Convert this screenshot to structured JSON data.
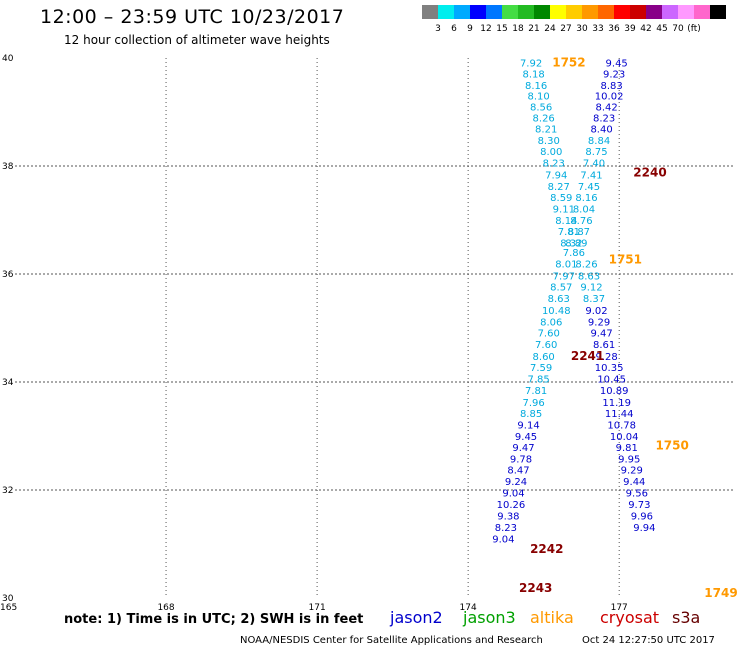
{
  "header": {
    "title": "12:00 – 23:59 UTC 10/23/2017",
    "subtitle": "12 hour collection of altimeter wave heights"
  },
  "footer": {
    "note": "note: 1) Time is in UTC; 2) SWH is in feet",
    "credit": "NOAA/NESDIS Center for Satellite Applications and Research",
    "timestamp": "Oct 24 12:27:50 UTC 2017"
  },
  "satellites": {
    "jason2": "jason2",
    "jason3": "jason3",
    "altika": "altika",
    "cryosat": "cryosat",
    "s3a": "s3a"
  },
  "colors": {
    "jason2": "#0000cc",
    "jason3": "#00a000",
    "altika": "#ff9900",
    "cryosat": "#cc0000",
    "s3a": "#660000",
    "cyan_track": "#00aadd"
  },
  "chart_data": {
    "type": "scatter",
    "x_range": [
      165,
      179.3
    ],
    "y_range": [
      30,
      40
    ],
    "x_ticks": [
      "165",
      "168",
      "171",
      "174",
      "177"
    ],
    "y_ticks": [
      "30",
      "32",
      "34",
      "36",
      "38",
      "40"
    ],
    "color_scale": {
      "colors": [
        "#808080",
        "#00eeee",
        "#00aaff",
        "#0000ff",
        "#0077ff",
        "#44dd44",
        "#22bb22",
        "#008800",
        "#ffff00",
        "#ffcc00",
        "#ff9900",
        "#ff6600",
        "#ff0000",
        "#cc0000",
        "#880088",
        "#cc66ff",
        "#ff99ff",
        "#ff66cc",
        "#000000"
      ],
      "labels": [
        "3",
        "6",
        "9",
        "12",
        "15",
        "18",
        "21",
        "24",
        "27",
        "30",
        "33",
        "36",
        "39",
        "42",
        "45",
        "70",
        "(ft)"
      ]
    },
    "time_labels": [
      {
        "text": "1752",
        "lon": 175.67,
        "lat": 39.84,
        "color": "#ff9900"
      },
      {
        "text": "2240",
        "lon": 177.28,
        "lat": 37.81,
        "color": "#880000"
      },
      {
        "text": "1751",
        "lon": 176.79,
        "lat": 36.19,
        "color": "#ff9900"
      },
      {
        "text": "2241",
        "lon": 176.04,
        "lat": 34.41,
        "color": "#880000"
      },
      {
        "text": "1750",
        "lon": 177.72,
        "lat": 32.75,
        "color": "#ff9900"
      },
      {
        "text": "2242",
        "lon": 175.23,
        "lat": 30.83,
        "color": "#880000"
      },
      {
        "text": "2243",
        "lon": 175.01,
        "lat": 30.11,
        "color": "#880000"
      },
      {
        "text": "1749",
        "lon": 178.69,
        "lat": 30.02,
        "color": "#ff9900"
      }
    ],
    "series": [
      {
        "color": "#00aadd",
        "points": [
          {
            "lon": 175.25,
            "lat": 39.84,
            "v": "7.92"
          },
          {
            "lon": 175.3,
            "lat": 39.64,
            "v": "8.18"
          },
          {
            "lon": 175.35,
            "lat": 39.43,
            "v": "8.16"
          },
          {
            "lon": 175.4,
            "lat": 39.23,
            "v": "8.10"
          },
          {
            "lon": 175.45,
            "lat": 39.03,
            "v": "8.56"
          },
          {
            "lon": 175.5,
            "lat": 38.82,
            "v": "8.26"
          },
          {
            "lon": 175.55,
            "lat": 38.62,
            "v": "8.21"
          },
          {
            "lon": 175.6,
            "lat": 38.41,
            "v": "8.30"
          },
          {
            "lon": 175.65,
            "lat": 38.2,
            "v": "8.00"
          },
          {
            "lon": 175.7,
            "lat": 37.99,
            "v": "8.23"
          },
          {
            "lon": 175.75,
            "lat": 37.77,
            "v": "7.94"
          },
          {
            "lon": 175.8,
            "lat": 37.56,
            "v": "8.27"
          },
          {
            "lon": 175.85,
            "lat": 37.35,
            "v": "8.59"
          },
          {
            "lon": 175.9,
            "lat": 37.14,
            "v": "9.11"
          },
          {
            "lon": 175.95,
            "lat": 36.93,
            "v": "8.14"
          },
          {
            "lon": 176.0,
            "lat": 36.72,
            "v": "7.81"
          },
          {
            "lon": 176.05,
            "lat": 36.51,
            "v": "8.32"
          },
          {
            "lon": 176.1,
            "lat": 36.33,
            "v": "7.86"
          },
          {
            "lon": 175.95,
            "lat": 36.12,
            "v": "8.01"
          },
          {
            "lon": 175.9,
            "lat": 35.9,
            "v": "7.97"
          },
          {
            "lon": 175.85,
            "lat": 35.69,
            "v": "8.57"
          },
          {
            "lon": 175.8,
            "lat": 35.48,
            "v": "8.63"
          },
          {
            "lon": 175.75,
            "lat": 35.26,
            "v": "10.48"
          },
          {
            "lon": 175.65,
            "lat": 35.05,
            "v": "8.06"
          },
          {
            "lon": 175.6,
            "lat": 34.84,
            "v": "7.60"
          },
          {
            "lon": 175.55,
            "lat": 34.63,
            "v": "7.60"
          },
          {
            "lon": 175.5,
            "lat": 34.41,
            "v": "8.60"
          },
          {
            "lon": 175.45,
            "lat": 34.2,
            "v": "7.59"
          },
          {
            "lon": 175.4,
            "lat": 33.99,
            "v": "7.85"
          },
          {
            "lon": 175.35,
            "lat": 33.78,
            "v": "7.81"
          },
          {
            "lon": 175.3,
            "lat": 33.56,
            "v": "7.96"
          },
          {
            "lon": 175.25,
            "lat": 33.35,
            "v": "8.85"
          }
        ]
      },
      {
        "color": "#0000cc",
        "points": [
          {
            "lon": 175.2,
            "lat": 33.14,
            "v": "9.14"
          },
          {
            "lon": 175.15,
            "lat": 32.93,
            "v": "9.45"
          },
          {
            "lon": 175.1,
            "lat": 32.72,
            "v": "9.47"
          },
          {
            "lon": 175.05,
            "lat": 32.51,
            "v": "9.78"
          },
          {
            "lon": 175.0,
            "lat": 32.31,
            "v": "8.47"
          },
          {
            "lon": 174.95,
            "lat": 32.09,
            "v": "9.24"
          },
          {
            "lon": 174.9,
            "lat": 31.88,
            "v": "9.04"
          },
          {
            "lon": 174.85,
            "lat": 31.67,
            "v": "10.26"
          },
          {
            "lon": 174.8,
            "lat": 31.45,
            "v": "9.38"
          },
          {
            "lon": 174.75,
            "lat": 31.24,
            "v": "8.23"
          },
          {
            "lon": 174.7,
            "lat": 31.03,
            "v": "9.04"
          }
        ]
      },
      {
        "color": "#0000cc",
        "points": [
          {
            "lon": 176.95,
            "lat": 39.84,
            "v": "9.45"
          },
          {
            "lon": 176.9,
            "lat": 39.64,
            "v": "9.23"
          },
          {
            "lon": 176.85,
            "lat": 39.43,
            "v": "8.83"
          },
          {
            "lon": 176.8,
            "lat": 39.23,
            "v": "10.02"
          },
          {
            "lon": 176.75,
            "lat": 39.03,
            "v": "8.42"
          },
          {
            "lon": 176.7,
            "lat": 38.82,
            "v": "8.23"
          },
          {
            "lon": 176.65,
            "lat": 38.62,
            "v": "8.40"
          }
        ]
      },
      {
        "color": "#00aadd",
        "points": [
          {
            "lon": 176.6,
            "lat": 38.41,
            "v": "8.84"
          },
          {
            "lon": 176.55,
            "lat": 38.2,
            "v": "8.75"
          },
          {
            "lon": 176.5,
            "lat": 37.99,
            "v": "7.40"
          },
          {
            "lon": 176.45,
            "lat": 37.77,
            "v": "7.41"
          },
          {
            "lon": 176.4,
            "lat": 37.56,
            "v": "7.45"
          },
          {
            "lon": 176.35,
            "lat": 37.35,
            "v": "8.16"
          },
          {
            "lon": 176.3,
            "lat": 37.14,
            "v": "8.04"
          },
          {
            "lon": 176.25,
            "lat": 36.93,
            "v": "8.76"
          },
          {
            "lon": 176.2,
            "lat": 36.72,
            "v": "8.87"
          },
          {
            "lon": 176.15,
            "lat": 36.51,
            "v": "8.89"
          },
          {
            "lon": 176.35,
            "lat": 36.12,
            "v": "8.26"
          },
          {
            "lon": 176.4,
            "lat": 35.9,
            "v": "8.63"
          },
          {
            "lon": 176.45,
            "lat": 35.69,
            "v": "9.12"
          },
          {
            "lon": 176.5,
            "lat": 35.48,
            "v": "8.37"
          }
        ]
      },
      {
        "color": "#0000cc",
        "points": [
          {
            "lon": 176.55,
            "lat": 35.26,
            "v": "9.02"
          },
          {
            "lon": 176.6,
            "lat": 35.05,
            "v": "9.29"
          },
          {
            "lon": 176.65,
            "lat": 34.84,
            "v": "9.47"
          },
          {
            "lon": 176.7,
            "lat": 34.63,
            "v": "8.61"
          },
          {
            "lon": 176.75,
            "lat": 34.41,
            "v": "9.28"
          },
          {
            "lon": 176.8,
            "lat": 34.2,
            "v": "10.35"
          },
          {
            "lon": 176.85,
            "lat": 33.99,
            "v": "10.45"
          },
          {
            "lon": 176.9,
            "lat": 33.78,
            "v": "10.89"
          },
          {
            "lon": 176.95,
            "lat": 33.56,
            "v": "11.19"
          },
          {
            "lon": 177.0,
            "lat": 33.35,
            "v": "11.44"
          },
          {
            "lon": 177.05,
            "lat": 33.14,
            "v": "10.78"
          },
          {
            "lon": 177.1,
            "lat": 32.93,
            "v": "10.04"
          },
          {
            "lon": 177.15,
            "lat": 32.72,
            "v": "9.81"
          },
          {
            "lon": 177.2,
            "lat": 32.51,
            "v": "9.95"
          },
          {
            "lon": 177.25,
            "lat": 32.31,
            "v": "9.29"
          },
          {
            "lon": 177.3,
            "lat": 32.09,
            "v": "9.44"
          },
          {
            "lon": 177.35,
            "lat": 31.88,
            "v": "9.56"
          },
          {
            "lon": 177.4,
            "lat": 31.67,
            "v": "9.73"
          },
          {
            "lon": 177.45,
            "lat": 31.45,
            "v": "9.96"
          },
          {
            "lon": 177.5,
            "lat": 31.24,
            "v": "9.94"
          }
        ]
      }
    ]
  }
}
